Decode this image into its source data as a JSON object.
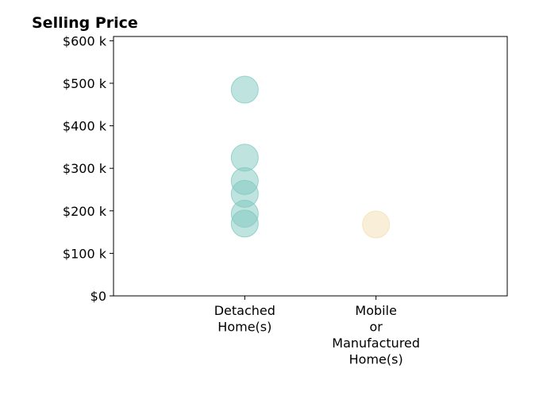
{
  "chart_data": {
    "type": "scatter",
    "title": "Selling Price",
    "xlabel": "",
    "ylabel": "",
    "categories": [
      [
        "Detached",
        "Home(s)"
      ],
      [
        "Mobile",
        "or",
        "Manufactured",
        "Home(s)"
      ]
    ],
    "xlim": [
      -1,
      2
    ],
    "ylim": [
      0,
      610000
    ],
    "yticks": [
      0,
      100000,
      200000,
      300000,
      400000,
      500000,
      600000
    ],
    "ytick_labels": [
      "$0",
      "$100 k",
      "$200 k",
      "$300 k",
      "$400 k",
      "$500 k",
      "$600 k"
    ],
    "grid": false,
    "legend": "none",
    "series": [
      {
        "category_index": 0,
        "color": "#7fc8bf",
        "values": [
          485000,
          325000,
          270000,
          240000,
          193000,
          170000
        ]
      },
      {
        "category_index": 1,
        "color": "#f3deb0",
        "values": [
          168000
        ]
      }
    ]
  }
}
